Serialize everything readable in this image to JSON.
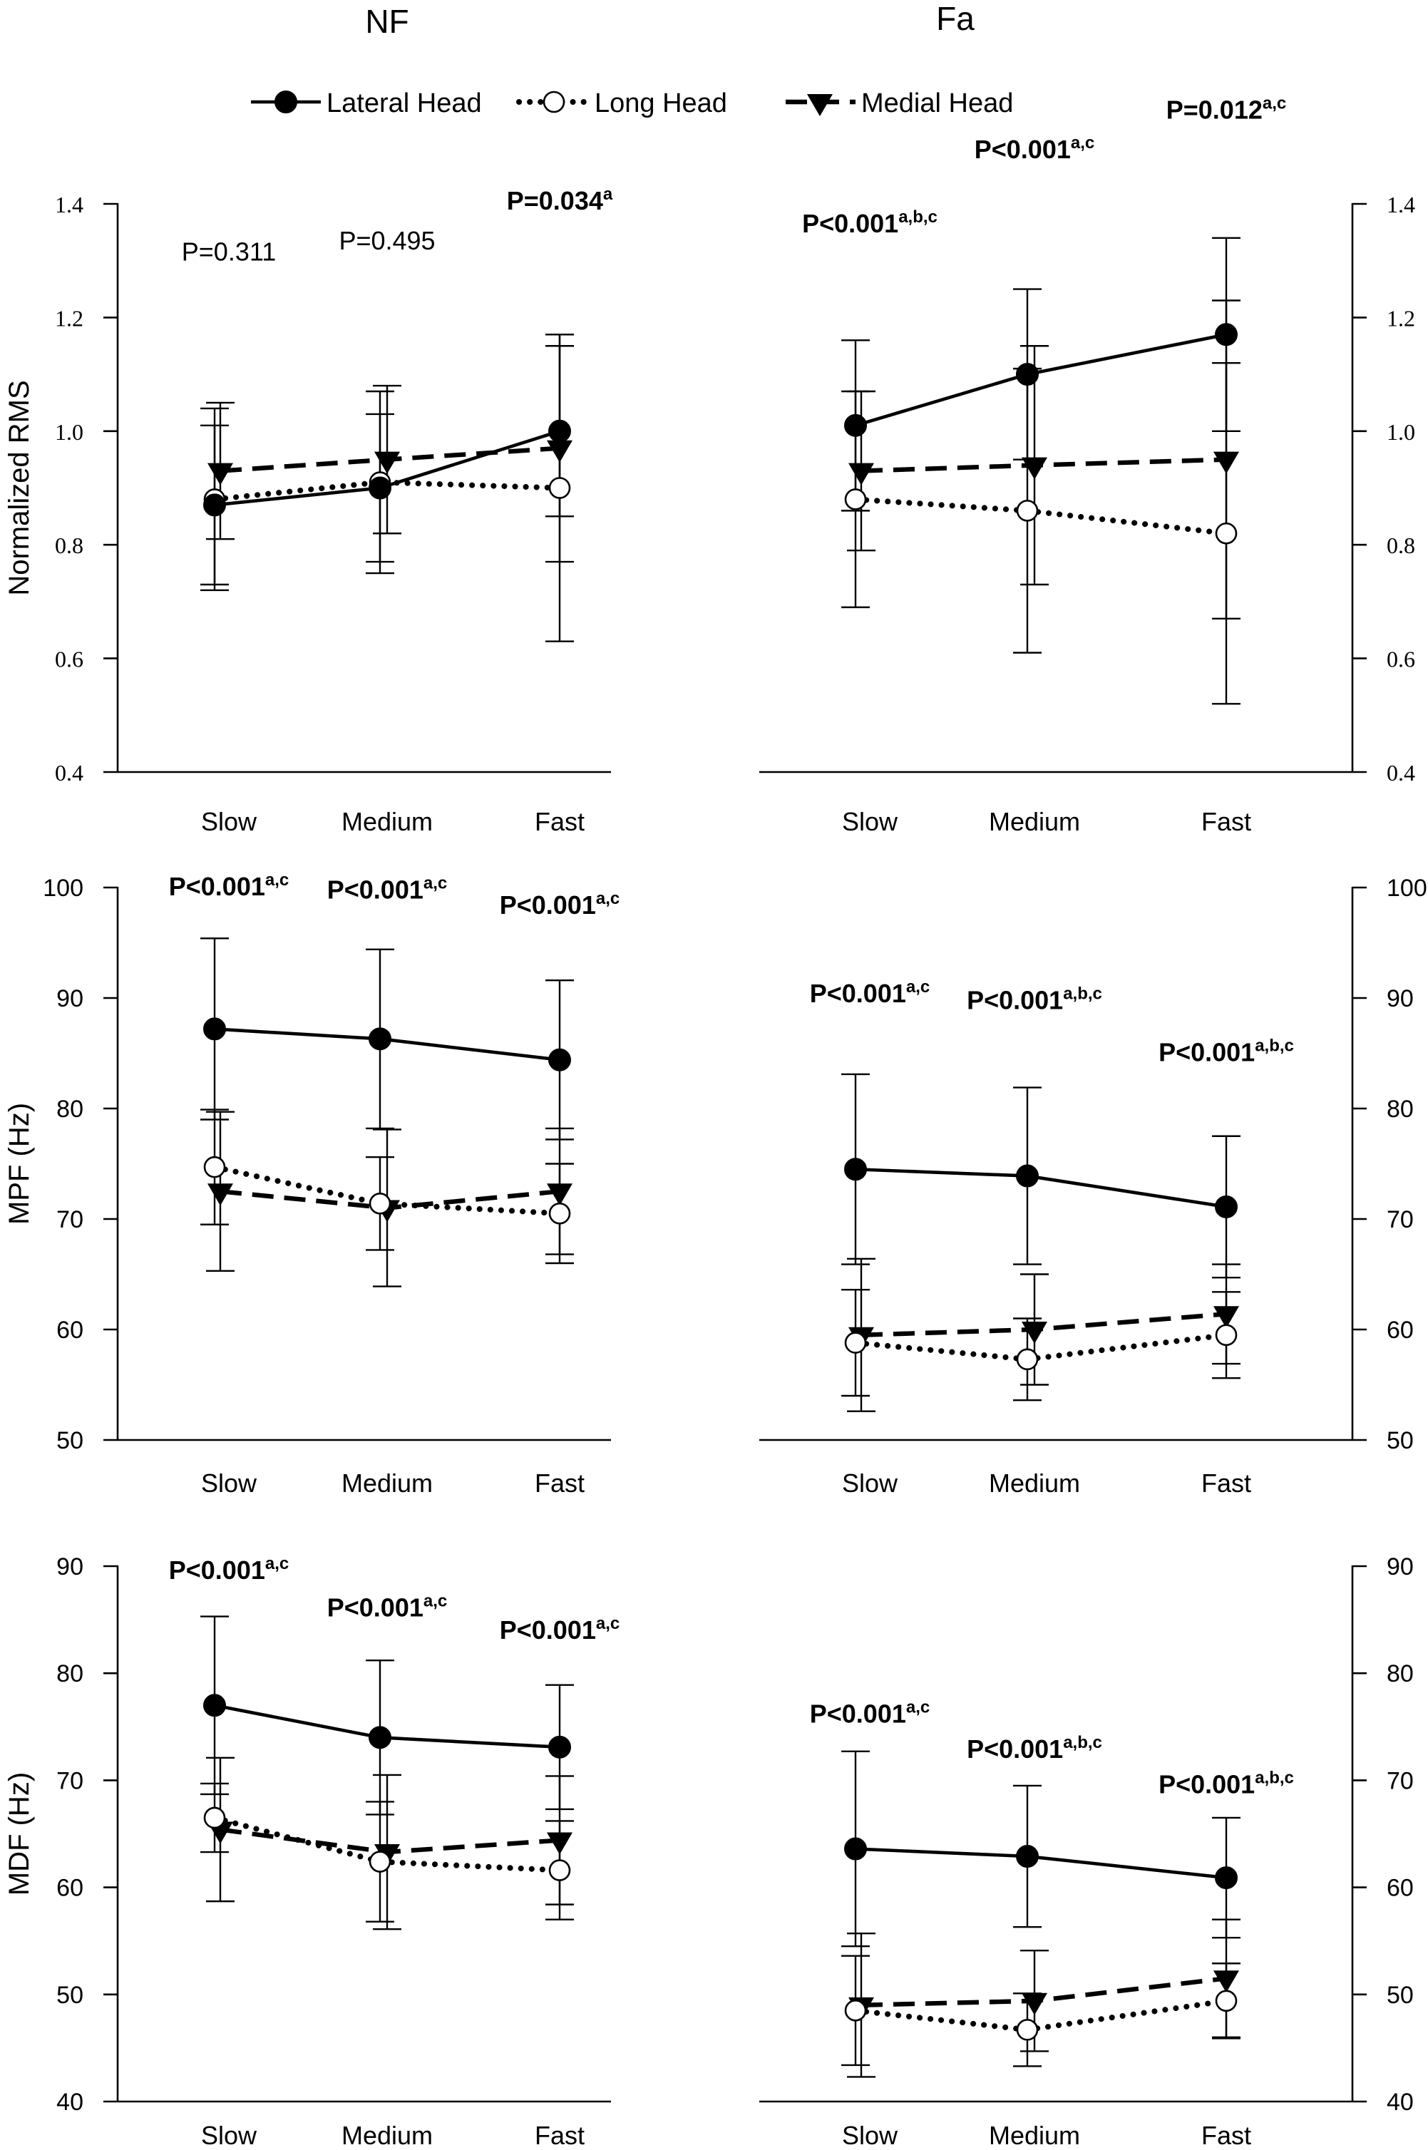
{
  "headings": {
    "left": "NF",
    "right": "Fa"
  },
  "legend": [
    {
      "name": "Lateral Head",
      "line": "solid",
      "marker": "filled-circle"
    },
    {
      "name": "Long Head",
      "line": "dotted",
      "marker": "open-circle"
    },
    {
      "name": "Medial Head",
      "line": "dashed",
      "marker": "filled-down-triangle"
    }
  ],
  "rows": [
    {
      "ylabel": "Normalized RMS",
      "ylim": [
        0.4,
        1.4
      ],
      "ticks": [
        "0.4",
        "0.6",
        "0.8",
        "1.0",
        "1.2",
        "1.4"
      ]
    },
    {
      "ylabel": "MPF (Hz)",
      "ylim": [
        50,
        100
      ],
      "ticks": [
        "50",
        "60",
        "70",
        "80",
        "90",
        "100"
      ]
    },
    {
      "ylabel": "MDF (Hz)",
      "ylim": [
        40,
        90
      ],
      "ticks": [
        "40",
        "50",
        "60",
        "70",
        "80",
        "90"
      ]
    }
  ],
  "chart_data": [
    {
      "type": "line",
      "condition": "NF",
      "ylabel": "Normalized RMS",
      "ylim": [
        0.4,
        1.4
      ],
      "categories": [
        "Slow",
        "Medium",
        "Fast"
      ],
      "series": [
        {
          "name": "Lateral Head",
          "values": [
            0.87,
            0.9,
            1.0
          ],
          "errors": [
            0.14,
            0.13,
            0.15
          ]
        },
        {
          "name": "Long Head",
          "values": [
            0.88,
            0.91,
            0.9
          ],
          "errors": [
            0.16,
            0.16,
            0.27
          ]
        },
        {
          "name": "Medial Head",
          "values": [
            0.93,
            0.95,
            0.97
          ],
          "errors": [
            0.12,
            0.13,
            0.2
          ]
        }
      ],
      "annotations": [
        {
          "cat": 0,
          "main": "P=0.311",
          "sup": "",
          "bold": false,
          "level": 1.3
        },
        {
          "cat": 1,
          "main": "P=0.495",
          "sup": "",
          "bold": false,
          "level": 1.32
        },
        {
          "cat": 2,
          "main": "P=0.034",
          "sup": "a",
          "bold": true,
          "level": 1.39
        }
      ]
    },
    {
      "type": "line",
      "condition": "Fa",
      "ylabel": "Normalized RMS",
      "ylim": [
        0.4,
        1.4
      ],
      "categories": [
        "Slow",
        "Medium",
        "Fast"
      ],
      "series": [
        {
          "name": "Lateral Head",
          "values": [
            1.01,
            1.1,
            1.17
          ],
          "errors": [
            0.15,
            0.15,
            0.17
          ]
        },
        {
          "name": "Long Head",
          "values": [
            0.88,
            0.86,
            0.82
          ],
          "errors": [
            0.19,
            0.25,
            0.3
          ]
        },
        {
          "name": "Medial Head",
          "values": [
            0.93,
            0.94,
            0.95
          ],
          "errors": [
            0.14,
            0.21,
            0.28
          ]
        }
      ],
      "annotations": [
        {
          "cat": 0,
          "main": "P<0.001",
          "sup": "a,b,c",
          "bold": true,
          "level": 1.35
        },
        {
          "cat": 1,
          "main": "P<0.001",
          "sup": "a,c",
          "bold": true,
          "level": 1.48
        },
        {
          "cat": 2,
          "main": "P=0.012",
          "sup": "a,c",
          "bold": true,
          "level": 1.55
        }
      ]
    },
    {
      "type": "line",
      "condition": "NF",
      "ylabel": "MPF (Hz)",
      "ylim": [
        50,
        100
      ],
      "categories": [
        "Slow",
        "Medium",
        "Fast"
      ],
      "series": [
        {
          "name": "Lateral Head",
          "values": [
            87.2,
            86.3,
            84.4
          ],
          "errors": [
            8.2,
            8.1,
            7.2
          ]
        },
        {
          "name": "Long Head",
          "values": [
            74.7,
            71.4,
            70.5
          ],
          "errors": [
            5.2,
            4.2,
            4.5
          ]
        },
        {
          "name": "Medial Head",
          "values": [
            72.5,
            71.0,
            72.5
          ],
          "errors": [
            7.2,
            7.1,
            5.7
          ]
        }
      ],
      "annotations": [
        {
          "cat": 0,
          "main": "P<0.001",
          "sup": "a,c",
          "bold": true,
          "level": 99.3
        },
        {
          "cat": 1,
          "main": "P<0.001",
          "sup": "a,c",
          "bold": true,
          "level": 99
        },
        {
          "cat": 2,
          "main": "P<0.001",
          "sup": "a,c",
          "bold": true,
          "level": 97.6
        }
      ]
    },
    {
      "type": "line",
      "condition": "Fa",
      "ylabel": "MPF (Hz)",
      "ylim": [
        50,
        100
      ],
      "categories": [
        "Slow",
        "Medium",
        "Fast"
      ],
      "series": [
        {
          "name": "Lateral Head",
          "values": [
            74.5,
            73.9,
            71.1
          ],
          "errors": [
            8.6,
            8.0,
            6.4
          ]
        },
        {
          "name": "Long Head",
          "values": [
            58.8,
            57.3,
            59.5
          ],
          "errors": [
            4.8,
            3.7,
            3.9
          ]
        },
        {
          "name": "Medial Head",
          "values": [
            59.5,
            60.0,
            61.4
          ],
          "errors": [
            6.9,
            5.0,
            4.5
          ]
        }
      ],
      "annotations": [
        {
          "cat": 0,
          "main": "P<0.001",
          "sup": "a,c",
          "bold": true,
          "level": 89.6
        },
        {
          "cat": 1,
          "main": "P<0.001",
          "sup": "a,b,c",
          "bold": true,
          "level": 89
        },
        {
          "cat": 2,
          "main": "P<0.001",
          "sup": "a,b,c",
          "bold": true,
          "level": 84.3
        }
      ]
    },
    {
      "type": "line",
      "condition": "NF",
      "ylabel": "MDF (Hz)",
      "ylim": [
        40,
        90
      ],
      "categories": [
        "Slow",
        "Medium",
        "Fast"
      ],
      "series": [
        {
          "name": "Lateral Head",
          "values": [
            77.0,
            74.0,
            73.1
          ],
          "errors": [
            8.3,
            7.2,
            5.8
          ]
        },
        {
          "name": "Long Head",
          "values": [
            66.5,
            62.4,
            61.6
          ],
          "errors": [
            3.2,
            5.6,
            4.6
          ]
        },
        {
          "name": "Medial Head",
          "values": [
            65.4,
            63.3,
            64.4
          ],
          "errors": [
            6.7,
            7.2,
            6.0
          ]
        }
      ],
      "annotations": [
        {
          "cat": 0,
          "main": "P<0.001",
          "sup": "a,c",
          "bold": true,
          "level": 88.8
        },
        {
          "cat": 1,
          "main": "P<0.001",
          "sup": "a,c",
          "bold": true,
          "level": 85.3
        },
        {
          "cat": 2,
          "main": "P<0.001",
          "sup": "a,c",
          "bold": true,
          "level": 83.2
        }
      ]
    },
    {
      "type": "line",
      "condition": "Fa",
      "ylabel": "MDF (Hz)",
      "ylim": [
        40,
        90
      ],
      "categories": [
        "Slow",
        "Medium",
        "Fast"
      ],
      "series": [
        {
          "name": "Lateral Head",
          "values": [
            63.6,
            62.9,
            60.9
          ],
          "errors": [
            9.1,
            6.6,
            5.6
          ]
        },
        {
          "name": "Long Head",
          "values": [
            48.5,
            46.7,
            49.4
          ],
          "errors": [
            5.1,
            3.4,
            3.5
          ]
        },
        {
          "name": "Medial Head",
          "values": [
            49.0,
            49.4,
            51.5
          ],
          "errors": [
            6.7,
            4.7,
            5.5
          ]
        }
      ],
      "annotations": [
        {
          "cat": 0,
          "main": "P<0.001",
          "sup": "a,c",
          "bold": true,
          "level": 75.4
        },
        {
          "cat": 1,
          "main": "P<0.001",
          "sup": "a,b,c",
          "bold": true,
          "level": 72.1
        },
        {
          "cat": 2,
          "main": "P<0.001",
          "sup": "a,b,c",
          "bold": true,
          "level": 68.8
        }
      ]
    }
  ]
}
